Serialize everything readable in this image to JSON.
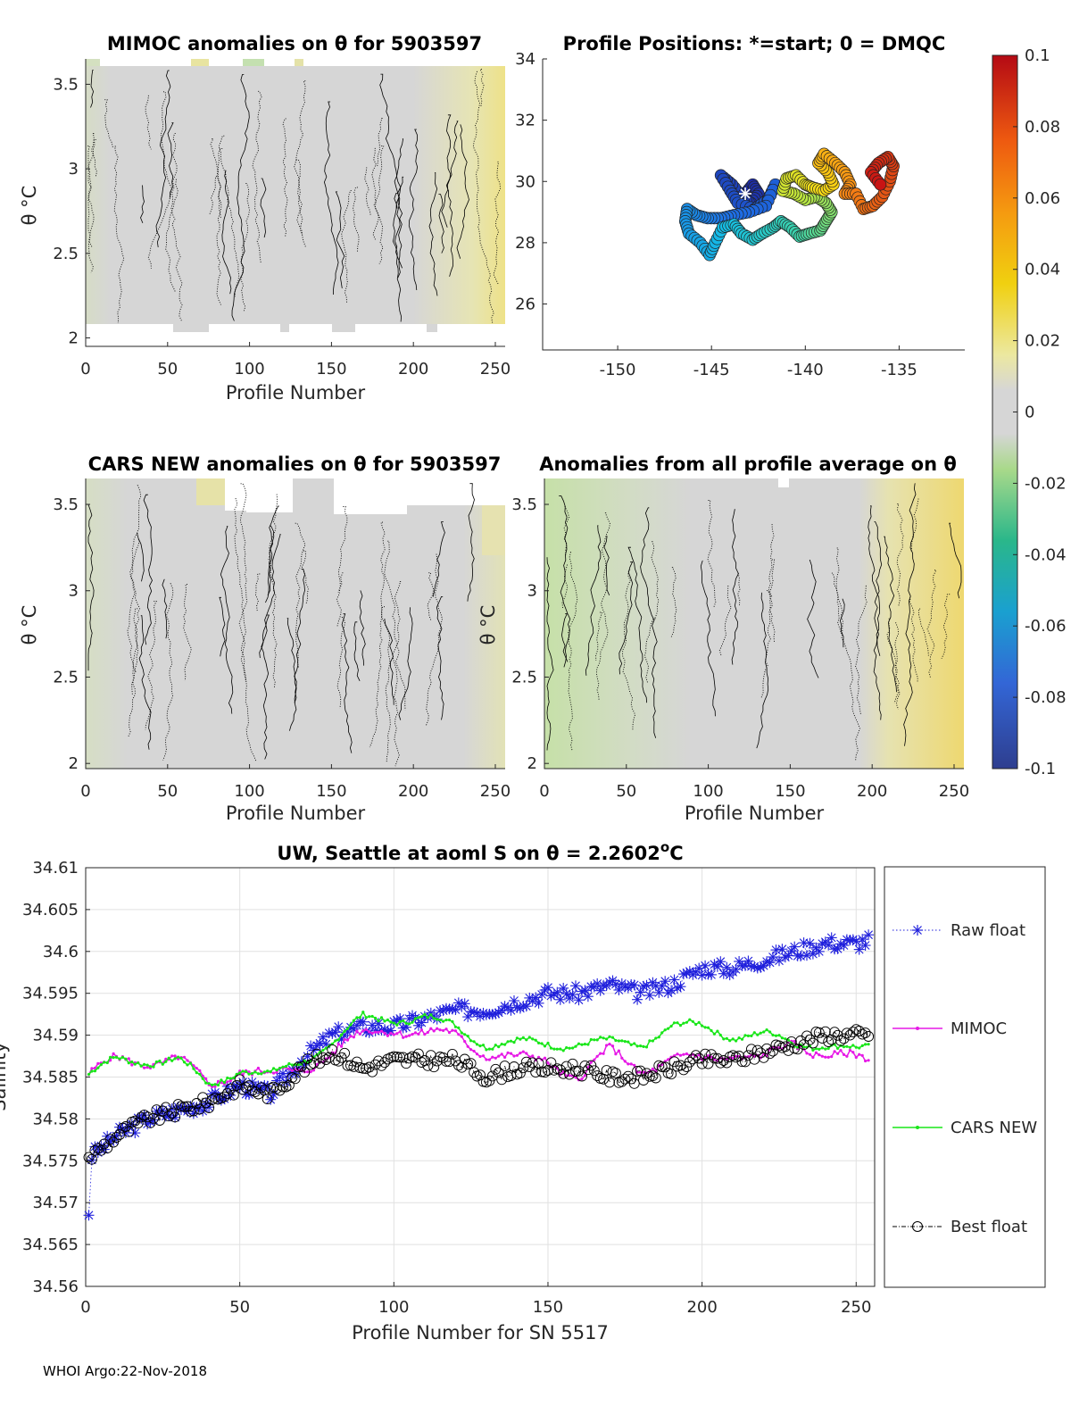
{
  "footer": "WHOI Argo:22-Nov-2018",
  "colorbar": {
    "ticks": [
      "0.1",
      "0.08",
      "0.06",
      "0.04",
      "0.02",
      "0",
      "-0.02",
      "-0.04",
      "-0.06",
      "-0.08",
      "-0.1"
    ],
    "range": [
      -0.1,
      0.1
    ]
  },
  "panels": {
    "mimoc": {
      "title": "MIMOC anomalies on θ  for 5903597",
      "xlabel": "Profile Number",
      "ylabel": "θ °C",
      "xticks": [
        "0",
        "50",
        "100",
        "150",
        "200",
        "250"
      ],
      "yticks": [
        "3.5",
        "3",
        "2.5",
        "2"
      ]
    },
    "positions": {
      "title": "Profile Positions: *=start; 0 = DMQC",
      "xticks": [
        "-150",
        "-145",
        "-140",
        "-135"
      ],
      "yticks": [
        "34",
        "32",
        "30",
        "28",
        "26"
      ]
    },
    "cars": {
      "title": "CARS NEW anomalies on θ for 5903597",
      "xlabel": "Profile Number",
      "ylabel": "θ °C",
      "xticks": [
        "0",
        "50",
        "100",
        "150",
        "200",
        "250"
      ],
      "yticks": [
        "3.5",
        "3",
        "2.5",
        "2"
      ]
    },
    "allavg": {
      "title": "Anomalies from all profile average on θ",
      "xlabel": "Profile Number",
      "ylabel": "θ °C",
      "xticks": [
        "0",
        "50",
        "100",
        "150",
        "200",
        "250"
      ],
      "yticks": [
        "3.5",
        "3",
        "2.5",
        "2"
      ]
    },
    "salinity": {
      "title_main": "UW, Seattle at aoml S on θ = 2.2602",
      "title_sup": "o",
      "title_end": "C",
      "xlabel": "Profile Number for SN 5517",
      "ylabel": "Salinity",
      "xticks": [
        "0",
        "50",
        "100",
        "150",
        "200",
        "250"
      ],
      "yticks": [
        "34.61",
        "34.605",
        "34.6",
        "34.595",
        "34.59",
        "34.585",
        "34.58",
        "34.575",
        "34.57",
        "34.565",
        "34.56"
      ]
    }
  },
  "legend": {
    "raw": "Raw float",
    "mimoc": "MIMOC",
    "cars": "CARS NEW",
    "best": "Best float"
  },
  "colors": {
    "raw": "#1f1fdc",
    "mimoc": "#e619e6",
    "cars": "#19e619",
    "best": "#000000",
    "anomaly_bg": "#d6d6d6"
  },
  "chart_data": [
    {
      "type": "heatmap",
      "title": "MIMOC anomalies on θ  for 5903597",
      "xlabel": "Profile Number",
      "ylabel": "θ °C",
      "xlim": [
        0,
        256
      ],
      "ylim": [
        1.95,
        3.65
      ],
      "clim": [
        -0.1,
        0.1
      ]
    },
    {
      "type": "scatter",
      "title": "Profile Positions: *=start; 0 = DMQC",
      "xlim": [
        -154,
        -131.5
      ],
      "ylim": [
        24.5,
        34
      ],
      "start": [
        -143.2,
        29.6
      ],
      "path": [
        [
          -143.2,
          29.6
        ],
        [
          -142.8,
          29.9
        ],
        [
          -142.5,
          29.6
        ],
        [
          -142.9,
          29.3
        ],
        [
          -143.4,
          29.5
        ],
        [
          -143.9,
          29.9
        ],
        [
          -144.5,
          30.2
        ],
        [
          -144.0,
          29.7
        ],
        [
          -143.6,
          29.3
        ],
        [
          -142.7,
          29.1
        ],
        [
          -142.0,
          29.4
        ],
        [
          -141.6,
          29.9
        ],
        [
          -142.1,
          29.2
        ],
        [
          -143.0,
          29.0
        ],
        [
          -143.8,
          28.9
        ],
        [
          -144.5,
          28.8
        ],
        [
          -145.2,
          28.8
        ],
        [
          -145.8,
          28.9
        ],
        [
          -146.3,
          29.1
        ],
        [
          -146.4,
          28.7
        ],
        [
          -146.2,
          28.3
        ],
        [
          -145.6,
          28.0
        ],
        [
          -145.1,
          27.6
        ],
        [
          -144.8,
          28.0
        ],
        [
          -144.4,
          28.5
        ],
        [
          -143.8,
          28.6
        ],
        [
          -143.4,
          28.3
        ],
        [
          -142.8,
          28.1
        ],
        [
          -142.3,
          28.3
        ],
        [
          -141.7,
          28.5
        ],
        [
          -141.3,
          28.7
        ],
        [
          -140.8,
          28.5
        ],
        [
          -140.3,
          28.2
        ],
        [
          -139.8,
          28.3
        ],
        [
          -139.2,
          28.4
        ],
        [
          -138.9,
          28.7
        ],
        [
          -138.6,
          29.0
        ],
        [
          -138.9,
          29.3
        ],
        [
          -139.4,
          29.5
        ],
        [
          -140.0,
          29.4
        ],
        [
          -140.6,
          29.6
        ],
        [
          -141.2,
          29.7
        ],
        [
          -141.0,
          30.1
        ],
        [
          -140.5,
          30.2
        ],
        [
          -140.0,
          29.9
        ],
        [
          -139.6,
          29.8
        ],
        [
          -139.0,
          29.7
        ],
        [
          -138.5,
          29.9
        ],
        [
          -138.8,
          30.3
        ],
        [
          -139.3,
          30.6
        ],
        [
          -139.0,
          30.9
        ],
        [
          -138.4,
          30.6
        ],
        [
          -137.9,
          30.3
        ],
        [
          -137.6,
          29.9
        ],
        [
          -137.9,
          29.6
        ],
        [
          -137.3,
          29.6
        ],
        [
          -136.9,
          29.1
        ],
        [
          -136.4,
          29.2
        ],
        [
          -135.9,
          29.5
        ],
        [
          -135.5,
          30.0
        ],
        [
          -135.3,
          30.5
        ],
        [
          -135.6,
          30.8
        ],
        [
          -136.1,
          30.6
        ],
        [
          -136.5,
          30.3
        ],
        [
          -136.0,
          29.9
        ]
      ]
    },
    {
      "type": "heatmap",
      "title": "CARS NEW anomalies on θ for 5903597",
      "xlabel": "Profile Number",
      "ylabel": "θ °C",
      "xlim": [
        0,
        256
      ],
      "ylim": [
        1.97,
        3.65
      ],
      "clim": [
        -0.1,
        0.1
      ]
    },
    {
      "type": "heatmap",
      "title": "Anomalies from all profile average on θ",
      "xlabel": "Profile Number",
      "ylabel": "θ °C",
      "xlim": [
        0,
        256
      ],
      "ylim": [
        1.97,
        3.65
      ],
      "clim": [
        -0.1,
        0.1
      ]
    },
    {
      "type": "line",
      "title": "UW, Seattle at aoml S on θ = 2.2602°C",
      "xlabel": "Profile Number for SN 5517",
      "ylabel": "Salinity",
      "xlim": [
        0,
        256
      ],
      "ylim": [
        34.56,
        34.61
      ],
      "x": [
        0,
        10,
        20,
        30,
        40,
        50,
        60,
        70,
        80,
        90,
        100,
        110,
        120,
        130,
        140,
        150,
        160,
        170,
        180,
        190,
        200,
        210,
        220,
        230,
        240,
        250,
        256
      ],
      "series": [
        {
          "name": "Raw float",
          "values": [
            34.575,
            34.578,
            34.58,
            34.581,
            34.582,
            34.584,
            34.583,
            34.587,
            34.59,
            34.591,
            34.591,
            34.592,
            34.593,
            34.593,
            34.594,
            34.595,
            34.595,
            34.596,
            34.595,
            34.596,
            34.598,
            34.598,
            34.599,
            34.6,
            34.601,
            34.601,
            34.6015
          ]
        },
        {
          "name": "MIMOC",
          "values": [
            34.585,
            34.587,
            34.587,
            34.587,
            34.584,
            34.586,
            34.585,
            34.586,
            34.588,
            34.59,
            34.591,
            34.59,
            34.59,
            34.588,
            34.587,
            34.587,
            34.585,
            34.588,
            34.586,
            34.587,
            34.587,
            34.588,
            34.587,
            34.589,
            34.588,
            34.587,
            34.5865
          ]
        },
        {
          "name": "CARS NEW",
          "values": [
            34.585,
            34.587,
            34.587,
            34.587,
            34.584,
            34.586,
            34.585,
            34.587,
            34.589,
            34.592,
            34.592,
            34.592,
            34.591,
            34.589,
            34.589,
            34.589,
            34.589,
            34.589,
            34.589,
            34.591,
            34.591,
            34.59,
            34.59,
            34.589,
            34.589,
            34.588,
            34.5885
          ]
        },
        {
          "name": "Best float",
          "values": [
            34.575,
            34.578,
            34.58,
            34.581,
            34.582,
            34.584,
            34.583,
            34.586,
            34.588,
            34.586,
            34.587,
            34.587,
            34.587,
            34.585,
            34.586,
            34.586,
            34.586,
            34.585,
            34.585,
            34.586,
            34.587,
            34.587,
            34.588,
            34.589,
            34.59,
            34.59,
            34.5898
          ]
        }
      ]
    }
  ]
}
